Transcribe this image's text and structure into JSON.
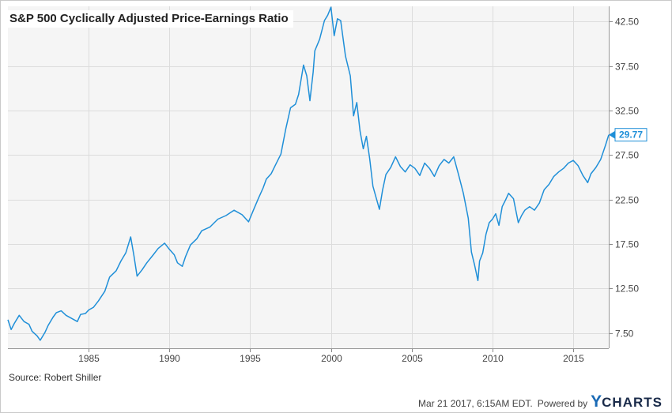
{
  "chart_data": {
    "type": "line",
    "title": "S&P 500 Cyclically Adjusted Price-Earnings Ratio",
    "ylim": [
      5.8,
      44.2
    ],
    "xlim": [
      1980.0,
      2017.2
    ],
    "y_ticks": [
      7.5,
      12.5,
      17.5,
      22.5,
      27.5,
      32.5,
      37.5,
      42.5
    ],
    "y_tick_labels": [
      "7.50",
      "12.50",
      "17.50",
      "22.50",
      "27.50",
      "32.50",
      "37.50",
      "42.50"
    ],
    "x_ticks": [
      1985,
      1990,
      1995,
      2000,
      2005,
      2010,
      2015
    ],
    "x_tick_labels": [
      "1985",
      "1990",
      "1995",
      "2000",
      "2005",
      "2010",
      "2015"
    ],
    "grid": true,
    "y_axis_position": "right",
    "last_value_label": "29.77",
    "series": [
      {
        "color": "#1f8fd8",
        "x": [
          1980.0,
          1980.2,
          1980.4,
          1980.7,
          1981.0,
          1981.3,
          1981.5,
          1981.8,
          1982.0,
          1982.3,
          1982.5,
          1982.8,
          1983.0,
          1983.3,
          1983.6,
          1984.0,
          1984.3,
          1984.5,
          1984.8,
          1985.0,
          1985.3,
          1985.6,
          1986.0,
          1986.3,
          1986.7,
          1987.0,
          1987.3,
          1987.6,
          1987.8,
          1988.0,
          1988.3,
          1988.6,
          1989.0,
          1989.3,
          1989.7,
          1990.0,
          1990.3,
          1990.5,
          1990.8,
          1991.0,
          1991.3,
          1991.7,
          1992.0,
          1992.5,
          1993.0,
          1993.5,
          1994.0,
          1994.5,
          1994.9,
          1995.2,
          1995.5,
          1995.8,
          1996.0,
          1996.3,
          1996.6,
          1996.9,
          1997.2,
          1997.5,
          1997.8,
          1998.0,
          1998.3,
          1998.5,
          1998.7,
          1998.9,
          1999.0,
          1999.3,
          1999.6,
          1999.8,
          2000.0,
          2000.2,
          2000.4,
          2000.6,
          2000.9,
          2001.2,
          2001.4,
          2001.6,
          2001.8,
          2002.0,
          2002.2,
          2002.4,
          2002.6,
          2002.8,
          2003.0,
          2003.2,
          2003.4,
          2003.7,
          2004.0,
          2004.3,
          2004.6,
          2004.9,
          2005.2,
          2005.5,
          2005.8,
          2006.1,
          2006.4,
          2006.7,
          2007.0,
          2007.3,
          2007.6,
          2007.9,
          2008.2,
          2008.5,
          2008.7,
          2008.9,
          2009.1,
          2009.2,
          2009.4,
          2009.6,
          2009.8,
          2010.0,
          2010.2,
          2010.4,
          2010.6,
          2010.8,
          2011.0,
          2011.3,
          2011.6,
          2011.8,
          2012.0,
          2012.3,
          2012.6,
          2012.9,
          2013.2,
          2013.5,
          2013.8,
          2014.1,
          2014.4,
          2014.7,
          2015.0,
          2015.3,
          2015.6,
          2015.9,
          2016.1,
          2016.4,
          2016.7,
          2017.0,
          2017.2
        ],
        "y": [
          9.0,
          7.9,
          8.6,
          9.5,
          8.8,
          8.5,
          7.7,
          7.2,
          6.7,
          7.6,
          8.4,
          9.3,
          9.8,
          10.0,
          9.5,
          9.1,
          8.8,
          9.6,
          9.7,
          10.1,
          10.4,
          11.1,
          12.2,
          13.8,
          14.5,
          15.6,
          16.5,
          18.3,
          16.2,
          13.9,
          14.6,
          15.4,
          16.3,
          17.0,
          17.6,
          16.9,
          16.3,
          15.4,
          15.0,
          16.1,
          17.4,
          18.1,
          19.0,
          19.4,
          20.3,
          20.7,
          21.3,
          20.8,
          20.0,
          21.3,
          22.6,
          23.8,
          24.8,
          25.4,
          26.5,
          27.6,
          30.4,
          32.8,
          33.2,
          34.3,
          37.6,
          36.4,
          33.6,
          36.8,
          39.2,
          40.5,
          42.6,
          43.2,
          44.1,
          40.9,
          42.8,
          42.6,
          38.6,
          36.4,
          31.9,
          33.4,
          30.2,
          28.2,
          29.6,
          27.1,
          24.0,
          22.7,
          21.4,
          23.6,
          25.3,
          26.1,
          27.3,
          26.2,
          25.6,
          26.4,
          26.0,
          25.2,
          26.6,
          26.0,
          25.1,
          26.3,
          27.0,
          26.6,
          27.3,
          25.3,
          23.2,
          20.4,
          16.6,
          15.1,
          13.4,
          15.6,
          16.5,
          18.6,
          19.9,
          20.3,
          20.9,
          19.6,
          21.7,
          22.4,
          23.2,
          22.6,
          19.9,
          20.7,
          21.3,
          21.7,
          21.3,
          22.1,
          23.6,
          24.2,
          25.1,
          25.6,
          26.0,
          26.6,
          26.9,
          26.3,
          25.2,
          24.4,
          25.4,
          26.1,
          27.0,
          28.6,
          29.77
        ]
      }
    ]
  },
  "source_label": "Source: Robert Shiller",
  "footer": {
    "timestamp": "Mar 21 2017, 6:15AM EDT.",
    "powered_by": "Powered by",
    "brand_y": "Y",
    "brand_rest": "CHARTS"
  }
}
